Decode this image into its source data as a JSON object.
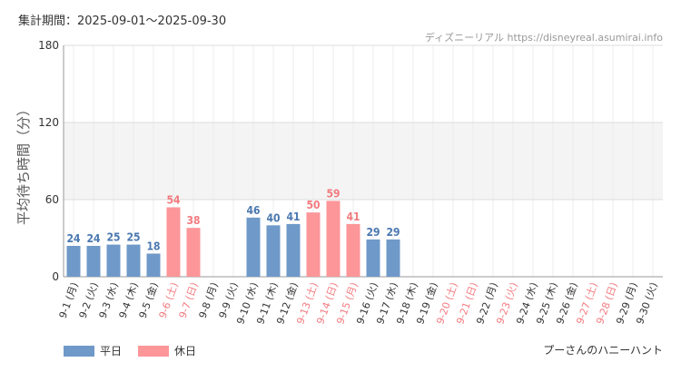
{
  "header": {
    "period": "集計期間：2025-09-01～2025-09-30",
    "source": "ディズニーリアル https://disneyreal.asumirai.info"
  },
  "legend": {
    "weekday": "平日",
    "holiday": "休日"
  },
  "attraction_name": "プーさんのハニーハント",
  "colors": {
    "weekday": "#6f99c8",
    "holiday": "#fc9699",
    "weekday_text": "#4a78b0",
    "holiday_text": "#f27b80"
  },
  "chart_data": {
    "type": "bar",
    "ylabel": "平均待ち時間（分）",
    "ylim": [
      0,
      180
    ],
    "yticks": [
      0,
      60,
      120,
      180
    ],
    "grid": true,
    "legend_position": "bottom-left",
    "categories": [
      "9-1 (月)",
      "9-2 (火)",
      "9-3 (水)",
      "9-4 (木)",
      "9-5 (金)",
      "9-6 (土)",
      "9-7 (日)",
      "9-8 (月)",
      "9-9 (火)",
      "9-10 (水)",
      "9-11 (木)",
      "9-12 (金)",
      "9-13 (土)",
      "9-14 (日)",
      "9-15 (月)",
      "9-16 (火)",
      "9-17 (水)",
      "9-18 (木)",
      "9-19 (金)",
      "9-20 (土)",
      "9-21 (日)",
      "9-22 (月)",
      "9-23 (火)",
      "9-24 (水)",
      "9-25 (木)",
      "9-26 (金)",
      "9-27 (土)",
      "9-28 (日)",
      "9-29 (月)",
      "9-30 (火)"
    ],
    "holiday": [
      false,
      false,
      false,
      false,
      false,
      true,
      true,
      false,
      false,
      false,
      false,
      false,
      true,
      true,
      true,
      false,
      false,
      false,
      false,
      true,
      true,
      false,
      true,
      false,
      false,
      false,
      true,
      true,
      false,
      false
    ],
    "values": [
      24,
      24,
      25,
      25,
      18,
      54,
      38,
      null,
      null,
      46,
      40,
      41,
      50,
      59,
      41,
      29,
      29,
      null,
      null,
      null,
      null,
      null,
      null,
      null,
      null,
      null,
      null,
      null,
      null,
      null
    ]
  }
}
